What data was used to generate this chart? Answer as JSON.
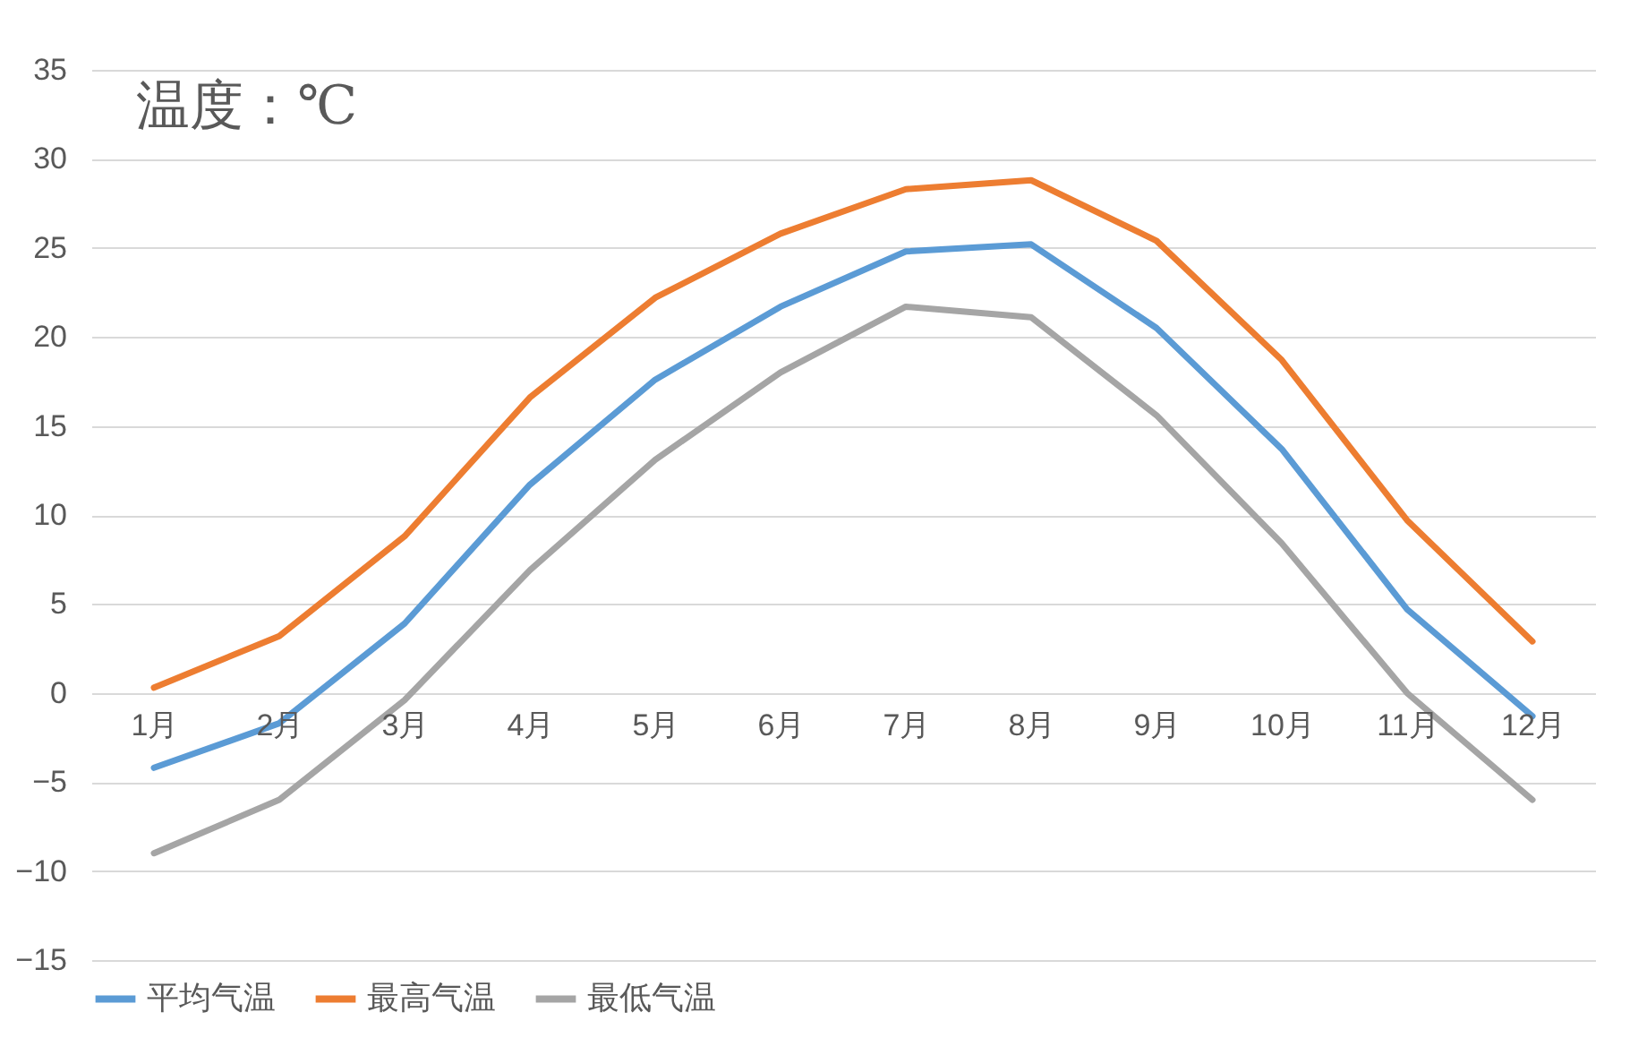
{
  "chart_data": {
    "type": "line",
    "ylabel": "温度：℃",
    "categories": [
      "1月",
      "2月",
      "3月",
      "4月",
      "5月",
      "6月",
      "7月",
      "8月",
      "9月",
      "10月",
      "11月",
      "12月"
    ],
    "series": [
      {
        "name": "平均气温",
        "color": "#5b9bd5",
        "values": [
          -4.2,
          -1.7,
          3.9,
          11.7,
          17.6,
          21.7,
          24.8,
          25.2,
          20.5,
          13.7,
          4.7,
          -1.3
        ]
      },
      {
        "name": "最高气温",
        "color": "#ed7d31",
        "values": [
          0.3,
          3.2,
          8.8,
          16.6,
          22.2,
          25.8,
          28.3,
          28.8,
          25.4,
          18.7,
          9.7,
          2.9
        ]
      },
      {
        "name": "最低气温",
        "color": "#a5a5a5",
        "values": [
          -9.0,
          -6.0,
          -0.4,
          6.9,
          13.1,
          18.0,
          21.7,
          21.1,
          15.6,
          8.4,
          0.0,
          -6.0
        ]
      }
    ],
    "ylim": [
      -15,
      35
    ],
    "yticks": [
      -15,
      -10,
      -5,
      0,
      5,
      10,
      15,
      20,
      25,
      30,
      35
    ],
    "grid": "y",
    "legend": "bottom",
    "marker": "none",
    "line_style": "solid"
  }
}
